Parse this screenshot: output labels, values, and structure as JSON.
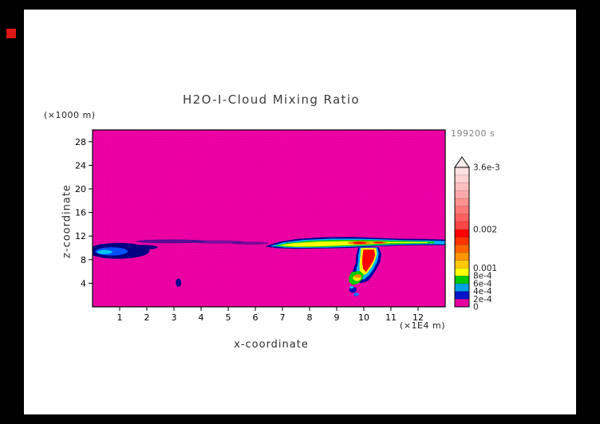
{
  "window": {
    "background_color": "#000000",
    "page_color": "#ffffff",
    "marker_color": "#dd1515"
  },
  "chart_data": {
    "type": "heatmap",
    "title": "H2O-I-Cloud Mixing Ratio",
    "timestamp_label": "199200 s",
    "xlabel": "x-coordinate",
    "ylabel": "z-coordinate",
    "x_unit_label": "(×1E4 m)",
    "y_unit_label": "(×1000 m)",
    "xlim": [
      0,
      13
    ],
    "ylim": [
      0,
      30
    ],
    "x_ticks": [
      1,
      2,
      3,
      4,
      5,
      6,
      7,
      8,
      9,
      10,
      11,
      12
    ],
    "y_ticks": [
      4,
      8,
      12,
      16,
      20,
      24,
      28
    ],
    "background_value": 0,
    "background_color": "#ef00a6",
    "grid_color": "#d20092",
    "colorbar": {
      "min": 0,
      "max": 0.0036,
      "cap_color": "#ffecec",
      "labels": [
        {
          "text": "3.6e-3",
          "value": 0.0036
        },
        {
          "text": "0.002",
          "value": 0.002
        },
        {
          "text": "0.001",
          "value": 0.001
        },
        {
          "text": "8e-4",
          "value": 0.0008
        },
        {
          "text": "6e-4",
          "value": 0.0006
        },
        {
          "text": "4e-4",
          "value": 0.0004
        },
        {
          "text": "2e-4",
          "value": 0.0002
        },
        {
          "text": "0",
          "value": 0
        }
      ],
      "levels": [
        "#e600a0",
        "#0014c8",
        "#00a0e6",
        "#00c800",
        "#ffff00",
        "#ffc800",
        "#ff9600",
        "#ff6400",
        "#ff3200",
        "#ff0000",
        "#ff4646",
        "#ff5f5f",
        "#ff7878",
        "#ff9191",
        "#ffaaaa",
        "#ffbebe",
        "#ffd2d2",
        "#ffe1e1"
      ]
    },
    "features": [
      {
        "shape": "ellipse",
        "cx": 0.95,
        "cy": 9.5,
        "rx": 1.15,
        "ry": 1.35,
        "color": "#000080"
      },
      {
        "shape": "ellipse",
        "cx": 0.7,
        "cy": 9.4,
        "rx": 0.6,
        "ry": 0.7,
        "color": "#0050ff"
      },
      {
        "shape": "ellipse",
        "cx": 0.45,
        "cy": 9.3,
        "rx": 0.28,
        "ry": 0.35,
        "color": "#00c8f0"
      },
      {
        "shape": "ellipse",
        "cx": 1.9,
        "cy": 10.1,
        "rx": 0.5,
        "ry": 0.4,
        "color": "#000080",
        "opacity": 0.9
      },
      {
        "shape": "ellipse",
        "cx": 2.9,
        "cy": 11.1,
        "rx": 1.3,
        "ry": 0.33,
        "color": "#281090",
        "opacity": 0.75
      },
      {
        "shape": "ellipse",
        "cx": 4.6,
        "cy": 11.0,
        "rx": 1.0,
        "ry": 0.28,
        "color": "#301898",
        "opacity": 0.6
      },
      {
        "shape": "ellipse",
        "cx": 5.8,
        "cy": 10.8,
        "rx": 0.7,
        "ry": 0.25,
        "color": "#281090",
        "opacity": 0.6
      },
      {
        "shape": "ellipse",
        "cx": 3.17,
        "cy": 4.1,
        "rx": 0.1,
        "ry": 0.7,
        "color": "#000090"
      },
      {
        "shape": "polygon",
        "color": "#000090",
        "points": [
          [
            6.35,
            10.25
          ],
          [
            6.9,
            11.05
          ],
          [
            7.6,
            11.55
          ],
          [
            8.6,
            11.8
          ],
          [
            9.6,
            11.85
          ],
          [
            10.4,
            11.7
          ],
          [
            11.3,
            11.55
          ],
          [
            12.2,
            11.5
          ],
          [
            13,
            11.4
          ],
          [
            13,
            10.45
          ],
          [
            12.2,
            10.45
          ],
          [
            11.3,
            10.4
          ],
          [
            10.5,
            10.25
          ],
          [
            9.5,
            10.0
          ],
          [
            8.5,
            9.9
          ],
          [
            7.5,
            9.85
          ],
          [
            6.8,
            9.95
          ]
        ]
      },
      {
        "shape": "polygon",
        "color": "#00b4ff",
        "points": [
          [
            6.55,
            10.3
          ],
          [
            7.05,
            10.95
          ],
          [
            7.8,
            11.35
          ],
          [
            8.8,
            11.55
          ],
          [
            9.8,
            11.55
          ],
          [
            10.6,
            11.45
          ],
          [
            11.5,
            11.3
          ],
          [
            12.4,
            11.25
          ],
          [
            13,
            11.15
          ],
          [
            13,
            10.6
          ],
          [
            12.3,
            10.6
          ],
          [
            11.4,
            10.55
          ],
          [
            10.6,
            10.4
          ],
          [
            9.7,
            10.2
          ],
          [
            8.7,
            10.05
          ],
          [
            7.8,
            10.0
          ],
          [
            7.1,
            10.05
          ]
        ]
      },
      {
        "shape": "polygon",
        "color": "#00c800",
        "points": [
          [
            6.7,
            10.35
          ],
          [
            7.2,
            10.85
          ],
          [
            8.0,
            11.2
          ],
          [
            9.0,
            11.35
          ],
          [
            10.0,
            11.35
          ],
          [
            10.9,
            11.25
          ],
          [
            11.8,
            11.15
          ],
          [
            12.6,
            11.1
          ],
          [
            12.6,
            10.75
          ],
          [
            11.7,
            10.7
          ],
          [
            10.8,
            10.55
          ],
          [
            9.9,
            10.35
          ],
          [
            8.9,
            10.2
          ],
          [
            8.0,
            10.1
          ],
          [
            7.2,
            10.15
          ]
        ]
      },
      {
        "shape": "polygon",
        "color": "#ffff00",
        "points": [
          [
            6.85,
            10.4
          ],
          [
            7.4,
            10.8
          ],
          [
            8.3,
            11.05
          ],
          [
            9.3,
            11.15
          ],
          [
            10.2,
            11.1
          ],
          [
            11.0,
            11.0
          ],
          [
            12.35,
            10.98
          ],
          [
            12.35,
            10.82
          ],
          [
            11.0,
            10.8
          ],
          [
            10.2,
            10.6
          ],
          [
            9.2,
            10.4
          ],
          [
            8.3,
            10.25
          ],
          [
            7.5,
            10.2
          ]
        ]
      },
      {
        "shape": "ellipse",
        "cx": 9.85,
        "cy": 10.85,
        "rx": 0.45,
        "ry": 0.3,
        "color": "#ff8c00"
      },
      {
        "shape": "ellipse",
        "cx": 9.85,
        "cy": 10.85,
        "rx": 0.25,
        "ry": 0.18,
        "color": "#ff0000"
      },
      {
        "shape": "ellipse",
        "cx": 10.55,
        "cy": 10.9,
        "rx": 0.3,
        "ry": 0.22,
        "color": "#ff8c00"
      },
      {
        "shape": "ellipse",
        "cx": 10.55,
        "cy": 10.9,
        "rx": 0.18,
        "ry": 0.12,
        "color": "#ff0000"
      },
      {
        "shape": "polygon",
        "color": "#0000a0",
        "points": [
          [
            9.8,
            10.1
          ],
          [
            10.55,
            10.1
          ],
          [
            10.65,
            9.0
          ],
          [
            10.6,
            7.6
          ],
          [
            10.45,
            6.3
          ],
          [
            10.3,
            5.2
          ],
          [
            10.15,
            4.4
          ],
          [
            9.9,
            4.0
          ],
          [
            9.65,
            4.4
          ],
          [
            9.55,
            5.2
          ],
          [
            9.6,
            6.2
          ],
          [
            9.7,
            7.4
          ],
          [
            9.72,
            8.8
          ]
        ]
      },
      {
        "shape": "polygon",
        "color": "#00b4ff",
        "points": [
          [
            9.85,
            10.05
          ],
          [
            10.5,
            10.05
          ],
          [
            10.55,
            9.0
          ],
          [
            10.5,
            7.7
          ],
          [
            10.35,
            6.4
          ],
          [
            10.2,
            5.4
          ],
          [
            10.0,
            4.6
          ],
          [
            9.78,
            5.1
          ],
          [
            9.72,
            6.2
          ],
          [
            9.78,
            7.5
          ],
          [
            9.8,
            8.8
          ]
        ]
      },
      {
        "shape": "polygon",
        "color": "#ffff00",
        "points": [
          [
            9.9,
            10.0
          ],
          [
            10.45,
            10.0
          ],
          [
            10.48,
            9.0
          ],
          [
            10.42,
            7.9
          ],
          [
            10.28,
            6.7
          ],
          [
            10.12,
            5.7
          ],
          [
            9.95,
            5.2
          ],
          [
            9.85,
            6.0
          ],
          [
            9.84,
            7.2
          ],
          [
            9.87,
            8.5
          ]
        ]
      },
      {
        "shape": "polygon",
        "color": "#ff0000",
        "points": [
          [
            9.98,
            9.7
          ],
          [
            10.38,
            9.7
          ],
          [
            10.42,
            8.8
          ],
          [
            10.35,
            7.8
          ],
          [
            10.22,
            6.8
          ],
          [
            10.08,
            5.9
          ],
          [
            9.98,
            6.4
          ],
          [
            9.94,
            7.4
          ],
          [
            9.95,
            8.5
          ]
        ]
      },
      {
        "shape": "polygon",
        "color": "#00c800",
        "points": [
          [
            9.55,
            5.9
          ],
          [
            9.85,
            6.1
          ],
          [
            10.0,
            5.5
          ],
          [
            9.95,
            4.7
          ],
          [
            9.8,
            4.0
          ],
          [
            9.6,
            3.7
          ],
          [
            9.45,
            4.2
          ],
          [
            9.45,
            5.1
          ]
        ]
      },
      {
        "shape": "ellipse",
        "cx": 9.75,
        "cy": 4.9,
        "rx": 0.15,
        "ry": 0.5,
        "color": "#ffff00"
      },
      {
        "shape": "ellipse",
        "cx": 9.78,
        "cy": 5.2,
        "rx": 0.14,
        "ry": 0.3,
        "color": "#ff8c00"
      },
      {
        "shape": "ellipse",
        "cx": 9.6,
        "cy": 2.9,
        "rx": 0.14,
        "ry": 0.5,
        "color": "#0000b0"
      },
      {
        "shape": "ellipse",
        "cx": 9.72,
        "cy": 2.1,
        "rx": 0.1,
        "ry": 0.3,
        "color": "#0070ff"
      },
      {
        "shape": "ellipse",
        "cx": 9.55,
        "cy": 3.3,
        "rx": 0.08,
        "ry": 0.2,
        "color": "#00c8f0"
      }
    ]
  }
}
